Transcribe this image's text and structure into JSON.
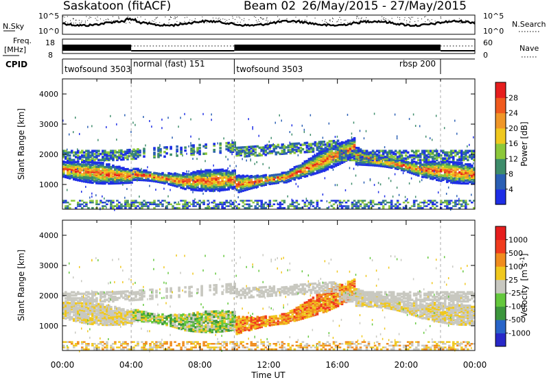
{
  "header": {
    "station": "Saskatoon (fitACF)",
    "beam_label": "Beam 02",
    "date_range": "26/May/2015 - 27/May/2015"
  },
  "chart_data": [
    {
      "type": "line",
      "panel": "noise",
      "left_label": "N.Sky",
      "right_label": "N.Search",
      "left_ticks": [
        "10^5",
        "10^0"
      ],
      "right_ticks": [
        "10^5",
        "10^0"
      ]
    },
    {
      "type": "line",
      "panel": "frequency",
      "left_label_top": "Freq.",
      "left_label_bottom": "[MHz]",
      "right_label": "Nave",
      "left_ticks": [
        18,
        8
      ],
      "right_ticks": [
        60,
        0
      ]
    },
    {
      "type": "table",
      "panel": "cpid",
      "label": "CPID",
      "segments": [
        {
          "name": "twofsound",
          "id": 3503,
          "start_hour": 0,
          "end_hour": 4
        },
        {
          "name": "normal (fast)",
          "id": 151,
          "start_hour": 4,
          "end_hour": 10
        },
        {
          "name": "twofsound",
          "id": 3503,
          "start_hour": 10,
          "end_hour": 22
        },
        {
          "name": "rbsp",
          "id": 200,
          "start_hour": 22,
          "end_hour": 24
        }
      ]
    },
    {
      "type": "heatmap",
      "panel": "power",
      "ylabel": "Slant Range [km]",
      "ylim": [
        180,
        4500
      ],
      "yticks": [
        1000,
        2000,
        3000,
        4000
      ],
      "colorbar_label": "Power [dB]",
      "colorbar_ticks": [
        4,
        8,
        12,
        16,
        20,
        24,
        28
      ],
      "colorbar_colors": [
        "#1e2ee6",
        "#2a5fb4",
        "#3d8c6a",
        "#8cc83a",
        "#f0c81e",
        "#f09628",
        "#f05a1e",
        "#e61e1e"
      ]
    },
    {
      "type": "heatmap",
      "panel": "velocity",
      "ylabel": "Slant Range [km]",
      "ylim": [
        180,
        4500
      ],
      "yticks": [
        1000,
        2000,
        3000,
        4000
      ],
      "colorbar_label": "Velocity",
      "colorbar_unit": "[m s",
      "colorbar_unit_sup": "-1",
      "colorbar_ticks": [
        "1000",
        "500",
        "100",
        "25",
        "-25",
        "-100",
        "-500",
        "-1000"
      ],
      "colorbar_colors": [
        "#2828c8",
        "#2864c8",
        "#3c963c",
        "#64c83c",
        "#c8c8c0",
        "#f0c81e",
        "#f08c1e",
        "#f03c1e",
        "#e61e1e"
      ]
    }
  ],
  "xaxis": {
    "label": "Time UT",
    "ticks": [
      "00:00",
      "04:00",
      "08:00",
      "12:00",
      "16:00",
      "20:00",
      "00:00"
    ],
    "xlim_hours": [
      0,
      24
    ]
  }
}
